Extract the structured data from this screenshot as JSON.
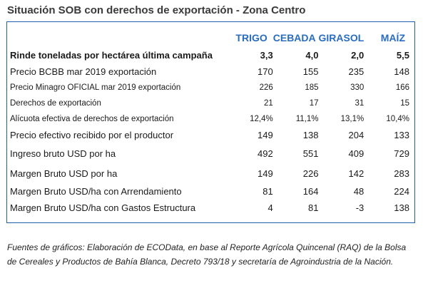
{
  "title": "Situación SOB con derechos de exportación - Zona Centro",
  "columns": [
    "TRIGO",
    "CEBADA",
    "GIRASOL",
    "MAÍZ"
  ],
  "rows": [
    {
      "label": "Rinde toneladas por hectárea última campaña",
      "values": [
        "3,3",
        "4,0",
        "2,0",
        "5,5"
      ]
    },
    {
      "label": "Precio BCBB mar 2019 exportación",
      "values": [
        "170",
        "155",
        "235",
        "148"
      ]
    },
    {
      "label": "Precio Minagro OFICIAL mar 2019 exportación",
      "values": [
        "226",
        "185",
        "330",
        "166"
      ]
    },
    {
      "label": "Derechos de exportación",
      "values": [
        "21",
        "17",
        "31",
        "15"
      ]
    },
    {
      "label": "Alícuota efectiva de derechos de exportación",
      "values": [
        "12,4%",
        "11,1%",
        "13,1%",
        "10,4%"
      ]
    },
    {
      "label": "Precio efectivo recibido por el productor",
      "values": [
        "149",
        "138",
        "204",
        "133"
      ]
    },
    {
      "label": "Ingreso bruto USD por ha",
      "values": [
        "492",
        "551",
        "409",
        "729"
      ]
    },
    {
      "label": "Margen Bruto USD por ha",
      "values": [
        "149",
        "226",
        "142",
        "283"
      ]
    },
    {
      "label": "Margen Bruto USD/ha con Arrendamiento",
      "values": [
        "81",
        "164",
        "48",
        "224"
      ]
    },
    {
      "label": "Margen Bruto USD/ha con Gastos Estructura",
      "values": [
        "4",
        "81",
        "-3",
        "138"
      ]
    }
  ],
  "footnote": "Fuentes de gráficos: Elaboración de ECOData, en base al Reporte Agrícola Quincenal (RAQ) de la Bolsa de Cereales y Productos de Bahía Blanca, Decreto 793/18 y secretaría de Agroindustria de la Nación."
}
